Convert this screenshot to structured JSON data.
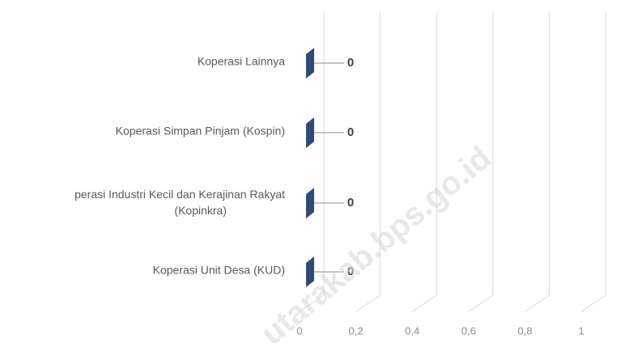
{
  "chart_data": {
    "type": "bar3d_horizontal",
    "categories": [
      "Koperasi Lainnya",
      "Koperasi Simpan Pinjam (Kospin)",
      "perasi Industri Kecil dan Kerajinan Rakyat (Kopinkra)",
      "Koperasi Unit Desa (KUD)"
    ],
    "values": [
      0,
      0,
      0,
      0
    ],
    "color": "#2f4b7c",
    "xlim": [
      0,
      1
    ],
    "xticks": [
      0,
      {
        "value": 0.2,
        "label": "0,2"
      },
      {
        "value": 0.4,
        "label": "0,4"
      },
      {
        "value": 0.6,
        "label": "0,6"
      },
      {
        "value": 0.8,
        "label": "0,8"
      },
      1
    ],
    "grid": true,
    "watermark": "utarakab.bps.go.id"
  }
}
